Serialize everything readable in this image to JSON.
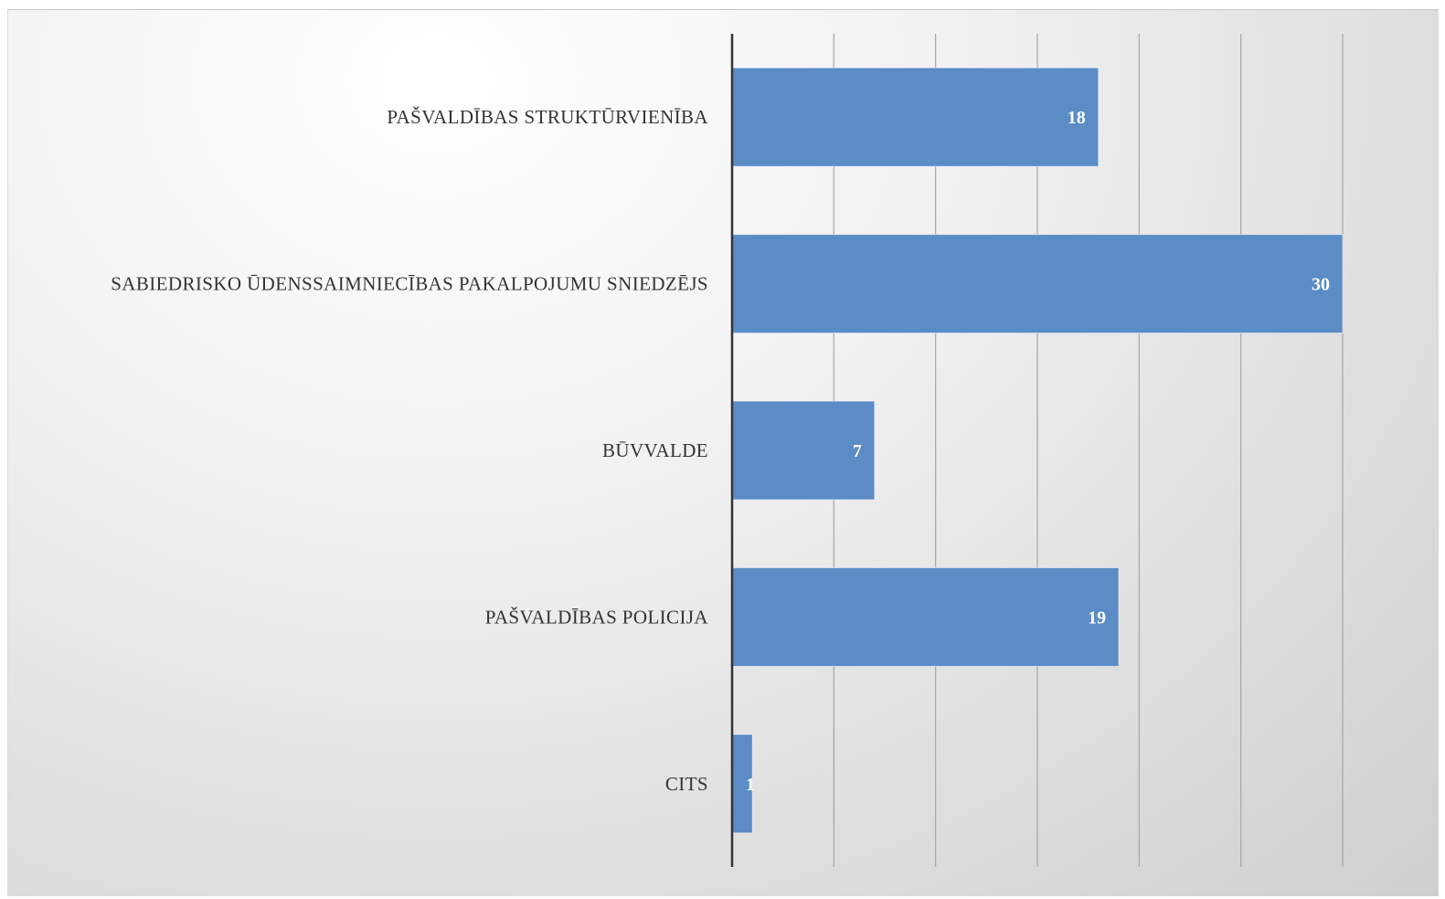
{
  "chart_data": {
    "type": "bar",
    "orientation": "horizontal",
    "categories": [
      "PAŠVALDĪBAS STRUKTŪRVIENĪBA",
      "SABIEDRISKO ŪDENSSAIMNIECĪBAS PAKALPOJUMU SNIEDZĒJS",
      "BŪVVALDE",
      "PAŠVALDĪBAS POLICIJA",
      "CITS"
    ],
    "values": [
      18,
      30,
      7,
      19,
      1
    ],
    "data_labels": [
      "18",
      "30",
      "7",
      "19",
      "1"
    ],
    "xlim": [
      0,
      30
    ],
    "gridlines_x": [
      5,
      10,
      15,
      20,
      25,
      30
    ],
    "grid": "vertical",
    "legend": "none",
    "bar_color": "#5b8cc6",
    "axis_color": "#333333",
    "grid_color": "#a6a6a6"
  }
}
